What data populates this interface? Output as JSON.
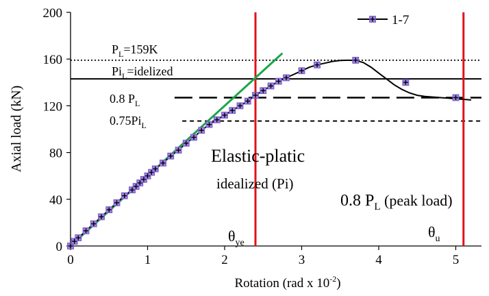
{
  "chart_data": {
    "type": "line",
    "xlabel": "Rotation (rad x 10",
    "xlabel_sup": "-2",
    "xlabel_end": ")",
    "ylabel": "Axial load (kN)",
    "xlim": [
      0,
      5.25
    ],
    "ylim": [
      0,
      200
    ],
    "x_ticks": [
      {
        "value": 0,
        "label": "0"
      },
      {
        "value": 1,
        "label": "1"
      },
      {
        "value": 2,
        "label": "2"
      },
      {
        "value": 3,
        "label": "3"
      },
      {
        "value": 4,
        "label": "4"
      },
      {
        "value": 5,
        "label": "5"
      }
    ],
    "y_ticks": [
      {
        "value": 0,
        "label": "0"
      },
      {
        "value": 40,
        "label": "40"
      },
      {
        "value": 80,
        "label": "80"
      },
      {
        "value": 120,
        "label": "120"
      },
      {
        "value": 160,
        "label": "160"
      },
      {
        "value": 200,
        "label": "200"
      }
    ],
    "grid": false,
    "legend_position": "top-right",
    "series": [
      {
        "name": "1-7",
        "color": "#000000",
        "marker_color": "#9b7fe0",
        "curve_x": [
          0,
          0.05,
          0.1,
          0.2,
          0.3,
          0.4,
          0.5,
          0.6,
          0.7,
          0.8,
          0.9,
          1.0,
          1.1,
          1.2,
          1.3,
          1.4,
          1.5,
          1.6,
          1.7,
          1.8,
          1.9,
          2.0,
          2.1,
          2.2,
          2.3,
          2.4,
          2.5,
          2.6,
          2.7,
          2.8,
          2.9,
          3.0,
          3.1,
          3.2,
          3.3,
          3.4,
          3.5,
          3.6,
          3.7,
          3.8,
          3.9,
          4.0,
          4.1,
          4.2,
          4.3,
          4.4,
          4.5,
          4.6,
          4.7,
          4.8,
          4.9,
          5.0,
          5.1,
          5.2
        ],
        "curve_y": [
          0,
          4,
          7,
          13,
          19,
          25,
          31,
          37,
          43,
          48,
          54,
          60,
          66,
          71,
          77,
          82,
          88,
          93,
          99,
          104,
          108,
          112,
          116,
          120,
          124,
          129,
          133,
          137,
          141,
          144,
          147,
          150,
          153,
          155,
          156.5,
          158,
          158.8,
          159,
          158.8,
          157,
          153,
          148,
          143,
          138,
          134,
          131,
          129,
          128,
          127.5,
          127,
          126.5,
          126,
          125.5,
          125
        ],
        "marker_x": [
          0,
          0.05,
          0.1,
          0.2,
          0.3,
          0.4,
          0.5,
          0.6,
          0.7,
          0.8,
          0.85,
          0.9,
          0.95,
          1.0,
          1.05,
          1.1,
          1.2,
          1.3,
          1.4,
          1.5,
          1.6,
          1.7,
          1.8,
          1.9,
          2.0,
          2.1,
          2.2,
          2.3,
          2.4,
          2.5,
          2.6,
          2.7,
          2.8,
          3.0,
          3.2,
          3.7,
          4.35,
          5.0
        ],
        "marker_y": [
          0,
          4,
          7,
          13,
          19,
          25,
          31,
          37,
          43,
          48,
          51,
          54,
          57,
          60,
          63,
          66,
          71,
          77,
          82,
          88,
          93,
          99,
          104,
          108,
          112,
          116,
          120,
          124,
          129,
          133,
          137,
          141,
          144,
          150,
          155,
          159,
          140,
          127
        ]
      }
    ],
    "elastic_line": {
      "color": "#1aa64a",
      "x": [
        0,
        2.75
      ],
      "y": [
        0,
        165
      ]
    },
    "hlines": [
      {
        "y": 159,
        "style": "dotted",
        "x_start": 0,
        "label": "P",
        "label_sub": "L",
        "label_end": "=159K"
      },
      {
        "y": 143,
        "style": "solid",
        "x_start": 0,
        "label": "Pi",
        "label_sub": "L",
        "label_end": "=idelized"
      },
      {
        "y": 127,
        "style": "long-dash",
        "x_start": 1.35,
        "label": "0.8 P",
        "label_sub": "L",
        "label_end": ""
      },
      {
        "y": 107,
        "style": "short-dash",
        "x_start": 1.45,
        "label": "0.75Pi",
        "label_sub": "L",
        "label_end": ""
      }
    ],
    "vlines": [
      {
        "x": 2.4,
        "color": "#e0111a",
        "label": "θ",
        "label_sub": "ye"
      },
      {
        "x": 5.1,
        "color": "#e0111a",
        "label": "θ",
        "label_sub": "u"
      }
    ],
    "annotations": {
      "elastic_title": "Elastic-platic",
      "elastic_sub": "idealized (Pi)",
      "peak_main": "0.8 P",
      "peak_sub": "L",
      "peak_end": " (peak load)"
    }
  }
}
